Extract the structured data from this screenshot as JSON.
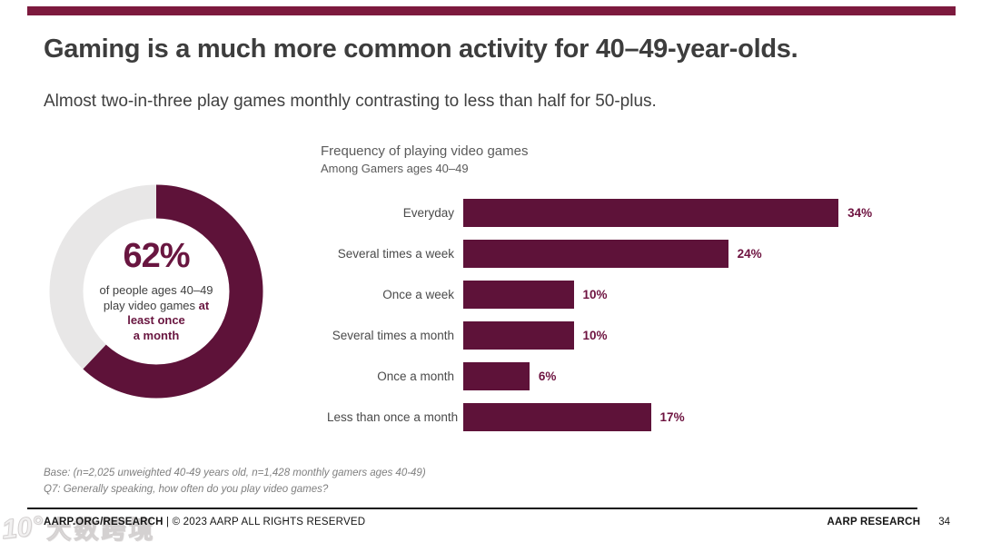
{
  "slide": {
    "title": "Gaming is a much more common activity for 40–49-year-olds.",
    "subtitle": "Almost two-in-three play games monthly contrasting to less than half for 50-plus.",
    "accent_color": "#7D1A3E"
  },
  "chart_data": [
    {
      "type": "pie",
      "subtype": "donut",
      "values": [
        62,
        38
      ],
      "labels": [
        "Play video games at least once a month",
        "Less often"
      ],
      "colors": [
        "#5E1239",
        "#E8E7E7"
      ],
      "center_label": "62%",
      "caption": {
        "line1": "of people ages 40–49",
        "line2_normal": "play video games ",
        "line2_bold": "at",
        "line3_bold": "least once",
        "line4_bold": "a month"
      }
    },
    {
      "type": "bar",
      "orientation": "horizontal",
      "title": "Frequency of playing video games",
      "subtitle": "Among Gamers ages 40–49",
      "categories": [
        "Everyday",
        "Several times a week",
        "Once a week",
        "Several times a month",
        "Once a month",
        "Less than once a month"
      ],
      "values": [
        34,
        24,
        10,
        10,
        6,
        17
      ],
      "value_labels": [
        "34%",
        "24%",
        "10%",
        "10%",
        "6%",
        "17%"
      ],
      "xlim": [
        0,
        40
      ],
      "grid": false,
      "legend": false,
      "bar_color": "#5E1239",
      "value_color": "#6E1340"
    }
  ],
  "notes": {
    "base": "Base: (n=2,025 unweighted 40-49 years old, n=1,428 monthly gamers ages 40-49)",
    "question": "Q7: Generally speaking, how often do you play video games?"
  },
  "footer": {
    "left_bold": "AARP.ORG/RESEARCH",
    "left_rest": " | © 2023 AARP ALL RIGHTS RESERVED",
    "right": "AARP RESEARCH",
    "page": "34"
  },
  "watermark": {
    "logo": "10°",
    "text": "大数跨境"
  }
}
